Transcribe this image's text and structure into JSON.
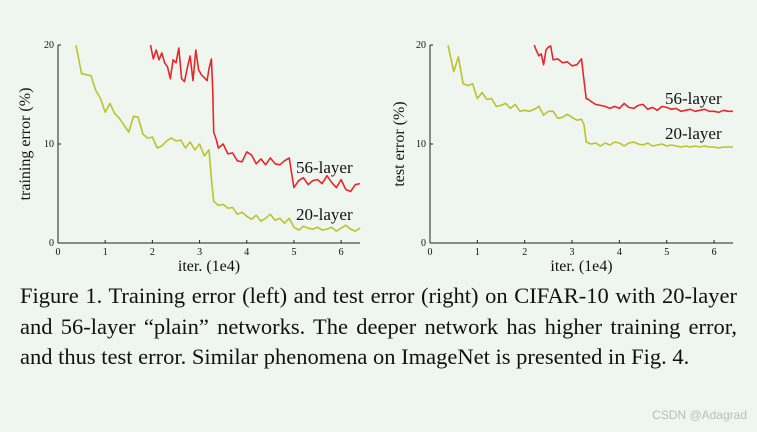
{
  "chart_data": [
    {
      "type": "line",
      "title": "",
      "xlabel": "iter. (1e4)",
      "ylabel": "training error (%)",
      "xlim": [
        0,
        6.4
      ],
      "ylim": [
        0,
        20
      ],
      "xticks": [
        "0",
        "1",
        "2",
        "3",
        "4",
        "5",
        "6"
      ],
      "yticks": [
        "0",
        "10",
        "20"
      ],
      "grid": false,
      "series": [
        {
          "name": "56-layer",
          "color": "#e8262a",
          "x": [
            1.96,
            2.02,
            2.08,
            2.14,
            2.2,
            2.26,
            2.32,
            2.38,
            2.44,
            2.5,
            2.56,
            2.62,
            2.68,
            2.74,
            2.8,
            2.86,
            2.92,
            2.98,
            3.04,
            3.1,
            3.16,
            3.2,
            3.25,
            3.28,
            3.3,
            3.35,
            3.4,
            3.5,
            3.6,
            3.7,
            3.8,
            3.9,
            4.0,
            4.1,
            4.2,
            4.3,
            4.4,
            4.5,
            4.6,
            4.7,
            4.8,
            4.9,
            5.0,
            5.1,
            5.2,
            5.3,
            5.4,
            5.5,
            5.6,
            5.7,
            5.8,
            5.9,
            6.0,
            6.1,
            6.2,
            6.3,
            6.4
          ],
          "values": [
            20,
            18.6,
            19.5,
            18.5,
            19.2,
            18.2,
            17.8,
            16.6,
            18.5,
            18.2,
            19.7,
            16.6,
            16.3,
            17.7,
            18.9,
            16.4,
            19.5,
            17.5,
            17.0,
            16.7,
            16.4,
            17.6,
            18.6,
            15.2,
            11.2,
            10.5,
            9.6,
            10.0,
            9.0,
            9.1,
            8.3,
            8.2,
            9.2,
            8.9,
            8.0,
            8.5,
            7.9,
            8.6,
            8.0,
            7.9,
            8.3,
            8.6,
            5.6,
            6.3,
            6.6,
            5.9,
            6.3,
            6.4,
            6.0,
            6.8,
            6.1,
            5.6,
            6.4,
            5.4,
            5.2,
            5.9,
            6.0
          ]
        },
        {
          "name": "20-layer",
          "color": "#bcc22c",
          "x": [
            0.38,
            0.5,
            0.6,
            0.7,
            0.8,
            0.9,
            1.0,
            1.1,
            1.2,
            1.3,
            1.4,
            1.5,
            1.6,
            1.7,
            1.8,
            1.9,
            2.0,
            2.1,
            2.2,
            2.3,
            2.4,
            2.5,
            2.6,
            2.7,
            2.8,
            2.9,
            3.0,
            3.1,
            3.2,
            3.25,
            3.3,
            3.35,
            3.4,
            3.5,
            3.6,
            3.7,
            3.8,
            3.9,
            4.0,
            4.1,
            4.2,
            4.3,
            4.4,
            4.5,
            4.6,
            4.7,
            4.8,
            4.9,
            5.0,
            5.1,
            5.2,
            5.3,
            5.4,
            5.5,
            5.6,
            5.7,
            5.8,
            5.9,
            6.0,
            6.1,
            6.2,
            6.3,
            6.4
          ],
          "values": [
            20,
            17.1,
            17.0,
            16.9,
            15.4,
            14.6,
            13.2,
            14.1,
            13.1,
            12.6,
            11.9,
            11.2,
            12.8,
            12.7,
            11.0,
            10.6,
            10.7,
            9.6,
            9.8,
            10.3,
            10.6,
            10.3,
            10.4,
            9.6,
            10.2,
            9.4,
            10.0,
            8.8,
            9.4,
            6.5,
            4.2,
            4.0,
            3.8,
            3.9,
            3.5,
            3.6,
            2.9,
            3.1,
            2.7,
            2.4,
            2.8,
            2.2,
            2.5,
            2.9,
            2.3,
            2.5,
            2.0,
            2.5,
            1.6,
            1.3,
            1.7,
            1.5,
            1.4,
            1.6,
            1.3,
            1.4,
            1.6,
            1.2,
            1.5,
            1.8,
            1.4,
            1.2,
            1.5
          ]
        }
      ]
    },
    {
      "type": "line",
      "title": "",
      "xlabel": "iter. (1e4)",
      "ylabel": "test error (%)",
      "xlim": [
        0,
        6.4
      ],
      "ylim": [
        0,
        20
      ],
      "xticks": [
        "0",
        "1",
        "2",
        "3",
        "4",
        "5",
        "6"
      ],
      "yticks": [
        "0",
        "10",
        "20"
      ],
      "grid": false,
      "series": [
        {
          "name": "56-layer",
          "color": "#e8262a",
          "x": [
            2.2,
            2.25,
            2.3,
            2.35,
            2.4,
            2.45,
            2.5,
            2.55,
            2.6,
            2.7,
            2.8,
            2.9,
            3.0,
            3.1,
            3.2,
            3.25,
            3.3,
            3.35,
            3.4,
            3.5,
            3.6,
            3.7,
            3.8,
            3.9,
            4.0,
            4.1,
            4.2,
            4.3,
            4.4,
            4.5,
            4.6,
            4.7,
            4.8,
            4.9,
            5.0,
            5.1,
            5.2,
            5.3,
            5.4,
            5.5,
            5.6,
            5.7,
            5.8,
            5.9,
            6.0,
            6.1,
            6.2,
            6.3,
            6.4
          ],
          "values": [
            20,
            19.4,
            18.9,
            19.1,
            18.0,
            19.5,
            19.8,
            19.9,
            18.5,
            18.6,
            18.2,
            18.3,
            17.9,
            18.0,
            18.6,
            16.5,
            14.6,
            14.5,
            14.3,
            14.0,
            13.9,
            13.8,
            13.6,
            13.8,
            13.6,
            14.1,
            13.7,
            13.6,
            13.9,
            14.0,
            13.5,
            13.7,
            13.4,
            13.8,
            13.7,
            13.5,
            13.6,
            13.3,
            13.4,
            13.5,
            13.3,
            13.4,
            13.5,
            13.3,
            13.3,
            13.2,
            13.4,
            13.3,
            13.3
          ]
        },
        {
          "name": "20-layer",
          "color": "#bcc22c",
          "x": [
            0.38,
            0.5,
            0.6,
            0.7,
            0.8,
            0.9,
            1.0,
            1.1,
            1.2,
            1.3,
            1.4,
            1.5,
            1.6,
            1.7,
            1.8,
            1.9,
            2.0,
            2.1,
            2.2,
            2.3,
            2.4,
            2.5,
            2.6,
            2.7,
            2.8,
            2.9,
            3.0,
            3.1,
            3.2,
            3.25,
            3.3,
            3.4,
            3.5,
            3.6,
            3.7,
            3.8,
            3.9,
            4.0,
            4.1,
            4.2,
            4.3,
            4.4,
            4.5,
            4.6,
            4.7,
            4.8,
            4.9,
            5.0,
            5.1,
            5.2,
            5.3,
            5.4,
            5.5,
            5.6,
            5.7,
            5.8,
            5.9,
            6.0,
            6.1,
            6.2,
            6.3,
            6.4
          ],
          "values": [
            20,
            17.3,
            18.8,
            16.1,
            15.9,
            16.1,
            14.6,
            15.2,
            14.5,
            14.6,
            13.8,
            13.9,
            14.1,
            13.6,
            14.0,
            13.3,
            13.4,
            13.3,
            13.5,
            13.8,
            12.9,
            13.3,
            13.3,
            12.6,
            12.7,
            13.0,
            12.7,
            12.4,
            12.5,
            12.0,
            10.2,
            10.0,
            10.1,
            9.8,
            10.1,
            9.9,
            10.2,
            10.1,
            9.8,
            10.1,
            10.2,
            10.0,
            9.9,
            10.1,
            9.8,
            9.9,
            10.0,
            9.8,
            9.9,
            9.8,
            9.7,
            9.8,
            9.7,
            9.8,
            9.7,
            9.8,
            9.7,
            9.7,
            9.6,
            9.7,
            9.7,
            9.7
          ]
        }
      ]
    }
  ],
  "caption": "Figure 1. Training error (left) and test error (right) on CIFAR-10 with 20-layer and 56-layer “plain” networks. The deeper network has higher training error, and thus test error.  Similar phenomena on ImageNet is presented in Fig. 4.",
  "watermark": "CSDN @Adagrad"
}
